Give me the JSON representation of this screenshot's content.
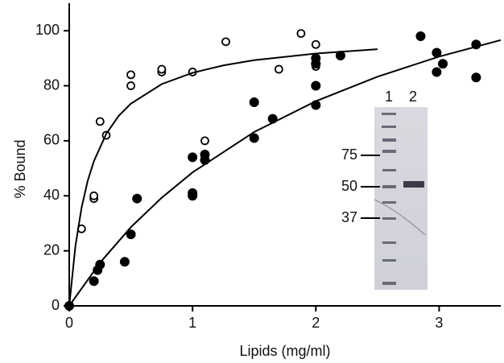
{
  "chart_data": {
    "type": "scatter",
    "x_label": "Lipids (mg/ml)",
    "y_label": "% Bound",
    "xlim": [
      0,
      3.5
    ],
    "ylim": [
      0,
      110
    ],
    "xticks": [
      0,
      1,
      2,
      3
    ],
    "yticks": [
      0,
      20,
      40,
      60,
      80,
      100
    ],
    "series": [
      {
        "marker": "open",
        "color": "#000000",
        "x": [
          0.1,
          0.2,
          0.2,
          0.25,
          0.3,
          0.5,
          0.5,
          0.75,
          0.75,
          1.0,
          1.1,
          1.27,
          1.7,
          1.88,
          2.0,
          2.0,
          2.0,
          2.0
        ],
        "values": [
          28,
          39,
          40,
          67,
          62,
          80,
          84,
          85,
          86,
          85,
          60,
          96,
          86,
          99,
          95,
          90,
          88,
          87
        ]
      },
      {
        "marker": "filled",
        "color": "#000000",
        "x": [
          0,
          0.2,
          0.23,
          0.25,
          0.45,
          0.5,
          0.55,
          1.0,
          1.0,
          1.0,
          1.1,
          1.1,
          1.5,
          1.5,
          1.65,
          2.0,
          2.0,
          2.0,
          2.0,
          2.2,
          2.85,
          2.98,
          2.98,
          3.03,
          3.3,
          3.3
        ],
        "values": [
          0,
          9,
          13,
          15,
          16,
          26,
          39,
          54,
          41,
          40,
          55,
          53,
          74,
          61,
          68,
          90,
          88,
          80,
          73,
          91,
          98,
          92,
          85,
          88,
          95,
          83
        ]
      },
      {
        "marker": "line",
        "color": "#000000",
        "x": [
          0,
          0.05,
          0.1,
          0.15,
          0.2,
          0.3,
          0.4,
          0.5,
          0.75,
          1.0,
          1.25,
          1.5,
          2.0,
          2.5
        ],
        "values": [
          0,
          21.7,
          35.7,
          45.5,
          52.6,
          62.5,
          69.0,
          73.5,
          80.6,
          84.7,
          87.4,
          89.3,
          91.7,
          93.3
        ]
      },
      {
        "marker": "line",
        "color": "#000000",
        "x": [
          0,
          0.25,
          0.5,
          0.75,
          1.0,
          1.5,
          2.0,
          2.5,
          3.0,
          3.5
        ],
        "values": [
          0,
          15.7,
          28.6,
          39.3,
          48.5,
          63.2,
          74.4,
          83.3,
          90.6,
          96.6
        ]
      }
    ],
    "inset": {
      "lanes": [
        "1",
        "2"
      ],
      "markers": [
        "75",
        "50",
        "37"
      ]
    }
  }
}
